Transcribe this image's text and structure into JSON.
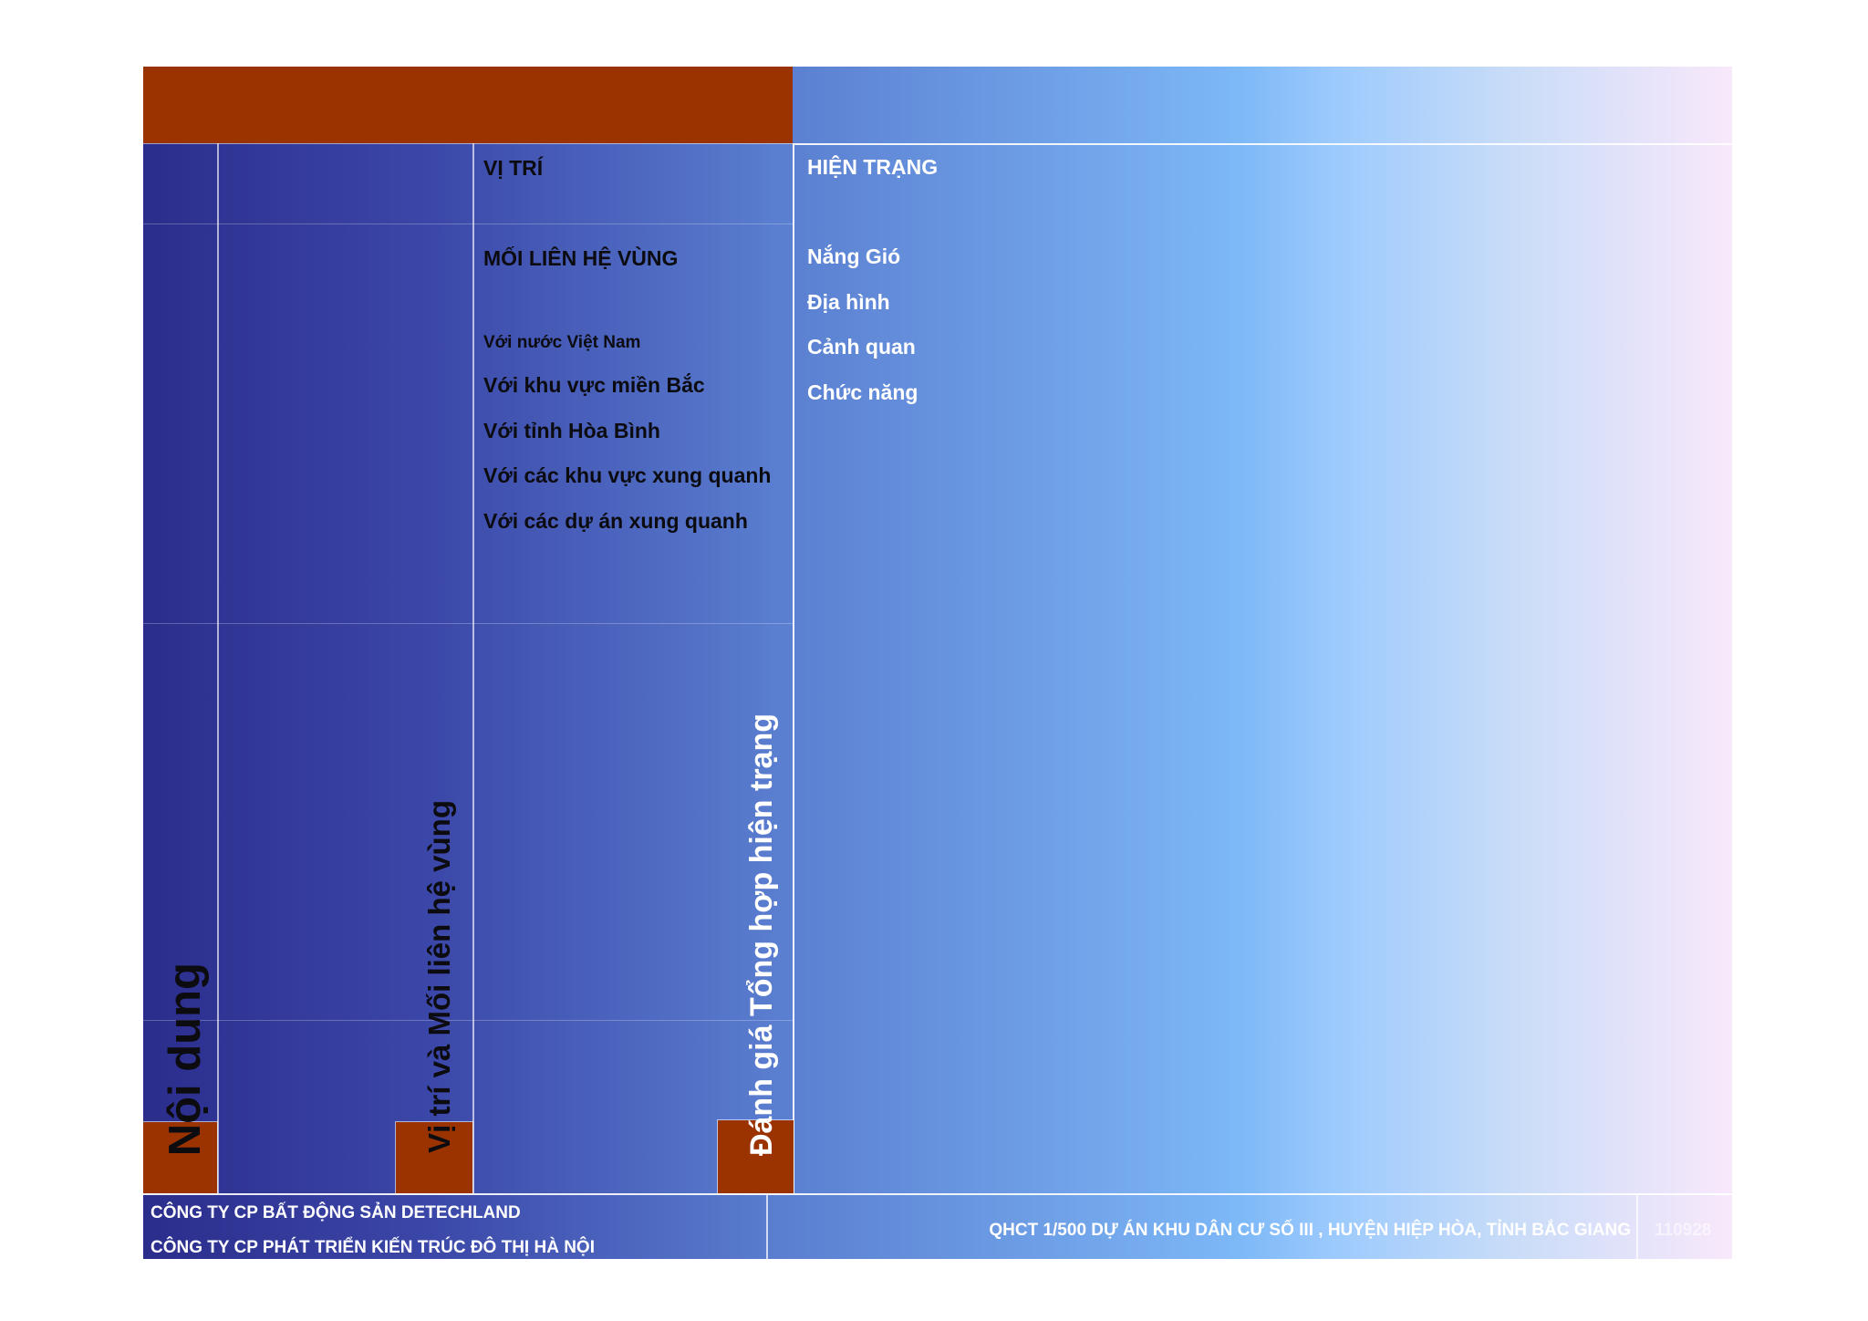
{
  "sidebar": {
    "noi_dung": "Nội dung",
    "vi_tri_moi_lien_he": "Vị trí và Mối liên hệ vùng",
    "danh_gia": "Đánh giá Tổng hợp hiện trạng"
  },
  "column_vi_tri": {
    "heading": "VỊ TRÍ",
    "subheading": "MỐI LIÊN HỆ VÙNG",
    "items": [
      "Với nước Việt Nam",
      "Với khu vực miền Bắc",
      "Với tỉnh Hòa Bình",
      "Với các khu vực xung quanh",
      "Với các dự án xung quanh"
    ]
  },
  "column_hien_trang": {
    "heading": "HIỆN TRẠNG",
    "items": [
      "Nắng Gió",
      "Địa hình",
      "Cảnh quan",
      "Chức năng"
    ]
  },
  "footer": {
    "company_1": "CÔNG TY CP BẤT ĐỘNG SẢN DETECHLAND",
    "company_2": "CÔNG TY CP PHÁT TRIỂN KIẾN TRÚC ĐÔ THỊ HÀ NỘI",
    "project": "QHCT 1/500 DỰ ÁN KHU DÂN CƯ SỐ III , HUYỆN HIỆP HÒA, TỈNH BẮC GIANG",
    "code": "110928"
  },
  "colors": {
    "rust": "#9a3300",
    "navy": "#2b2d8c",
    "sky": "#7db8f7",
    "pink": "#f9e8fb"
  }
}
